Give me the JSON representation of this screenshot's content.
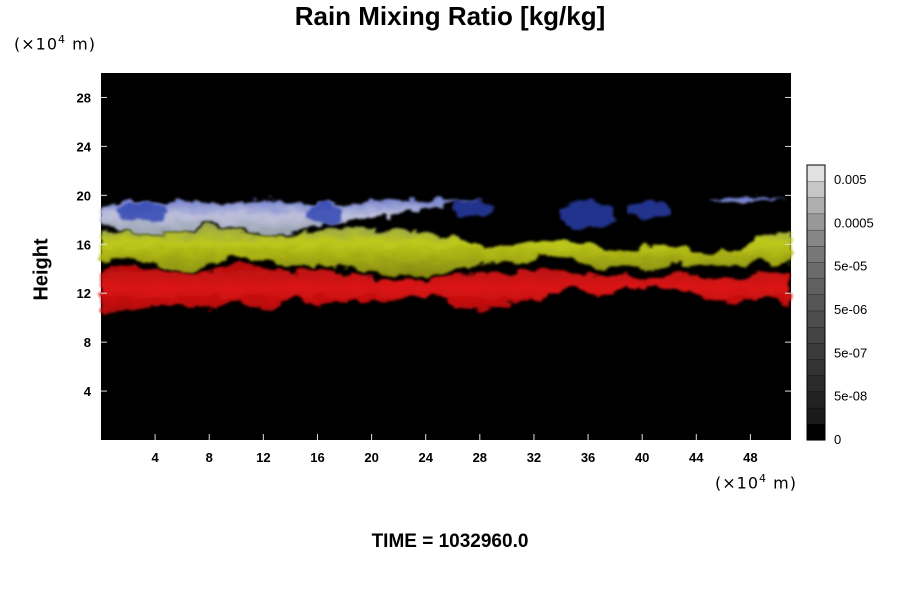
{
  "chart_data": {
    "type": "heatmap",
    "title": "Rain Mixing Ratio [kg/kg]",
    "ylabel": "Height",
    "y_unit": "10^4 m",
    "x_unit": "10^4 m",
    "footer": "TIME = 1032960.0",
    "xlim": [
      0,
      51
    ],
    "ylim": [
      0,
      30
    ],
    "x_ticks": [
      4,
      8,
      12,
      16,
      20,
      24,
      28,
      32,
      36,
      40,
      44,
      48
    ],
    "y_ticks": [
      4,
      8,
      12,
      16,
      20,
      24,
      28
    ],
    "colorbar": {
      "labels": [
        "0.005",
        "0.0005",
        "5e-05",
        "5e-06",
        "5e-07",
        "5e-08",
        "0"
      ],
      "levels": 17,
      "colors": [
        "#000000",
        "#1a1a1a",
        "#222222",
        "#2a2a2a",
        "#333333",
        "#3b3b3b",
        "#444444",
        "#4d4d4d",
        "#565656",
        "#606060",
        "#6b6b6b",
        "#777777",
        "#868686",
        "#989898",
        "#aeaeae",
        "#c6c6c6",
        "#e2e2e2"
      ]
    },
    "layers": [
      {
        "name": "upper",
        "color": "#c8c8e8",
        "bottom": [
          17.5,
          17.0,
          16.8,
          17.0,
          17.8,
          17.2,
          16.6,
          17.0,
          17.6,
          18.0,
          18.2,
          18.6,
          19.0,
          19.4,
          19.6,
          19.6,
          19.6,
          19.8,
          19.8,
          19.6,
          19.6,
          19.6,
          19.6,
          19.2,
          19.6,
          19.8
        ],
        "top": [
          19.2,
          19.6,
          19.4,
          19.6,
          19.4,
          19.4,
          19.6,
          19.4,
          19.4,
          19.4,
          19.6,
          19.6,
          19.6,
          19.6,
          19.6,
          19.6,
          19.6,
          19.8,
          19.8,
          19.6,
          19.6,
          19.6,
          19.6,
          19.8,
          19.8,
          19.8
        ]
      },
      {
        "name": "middle",
        "color": "#c8d21e",
        "bottom": [
          14.6,
          14.8,
          14.4,
          13.6,
          14.2,
          15.2,
          14.6,
          14.2,
          14.4,
          14.0,
          13.6,
          13.4,
          13.4,
          14.0,
          14.6,
          14.4,
          15.0,
          14.8,
          14.0,
          14.2,
          13.8,
          14.4,
          14.0,
          14.2,
          14.6,
          14.4
        ],
        "top": [
          17.2,
          17.0,
          16.8,
          17.0,
          17.6,
          17.0,
          16.6,
          16.8,
          17.2,
          17.4,
          17.2,
          17.2,
          16.8,
          16.6,
          15.6,
          16.0,
          16.2,
          16.4,
          15.8,
          15.4,
          16.0,
          15.8,
          15.2,
          15.6,
          16.8,
          17.0
        ]
      },
      {
        "name": "lower",
        "color": "#e01010",
        "bottom": [
          10.2,
          10.4,
          11.0,
          11.2,
          10.6,
          11.4,
          10.4,
          11.8,
          11.0,
          11.4,
          11.2,
          11.6,
          12.0,
          10.8,
          10.6,
          11.2,
          11.6,
          12.6,
          11.8,
          12.4,
          12.6,
          12.2,
          11.4,
          11.2,
          11.8,
          10.8
        ],
        "top": [
          14.2,
          14.4,
          14.0,
          13.6,
          13.8,
          14.6,
          14.0,
          13.8,
          14.0,
          13.6,
          13.2,
          13.0,
          13.2,
          13.6,
          13.8,
          13.6,
          14.0,
          13.8,
          13.4,
          13.6,
          13.2,
          13.8,
          13.4,
          13.2,
          13.8,
          13.4
        ]
      }
    ],
    "blue_patches": [
      {
        "x": [
          34.0,
          38.0
        ],
        "y": [
          17.2,
          19.6
        ]
      },
      {
        "x": [
          39.0,
          42.0
        ],
        "y": [
          18.0,
          19.6
        ]
      },
      {
        "x": [
          1.0,
          5.0
        ],
        "y": [
          17.8,
          19.4
        ]
      },
      {
        "x": [
          15.0,
          18.0
        ],
        "y": [
          17.6,
          19.4
        ]
      },
      {
        "x": [
          26.0,
          29.0
        ],
        "y": [
          18.2,
          19.6
        ]
      }
    ]
  }
}
